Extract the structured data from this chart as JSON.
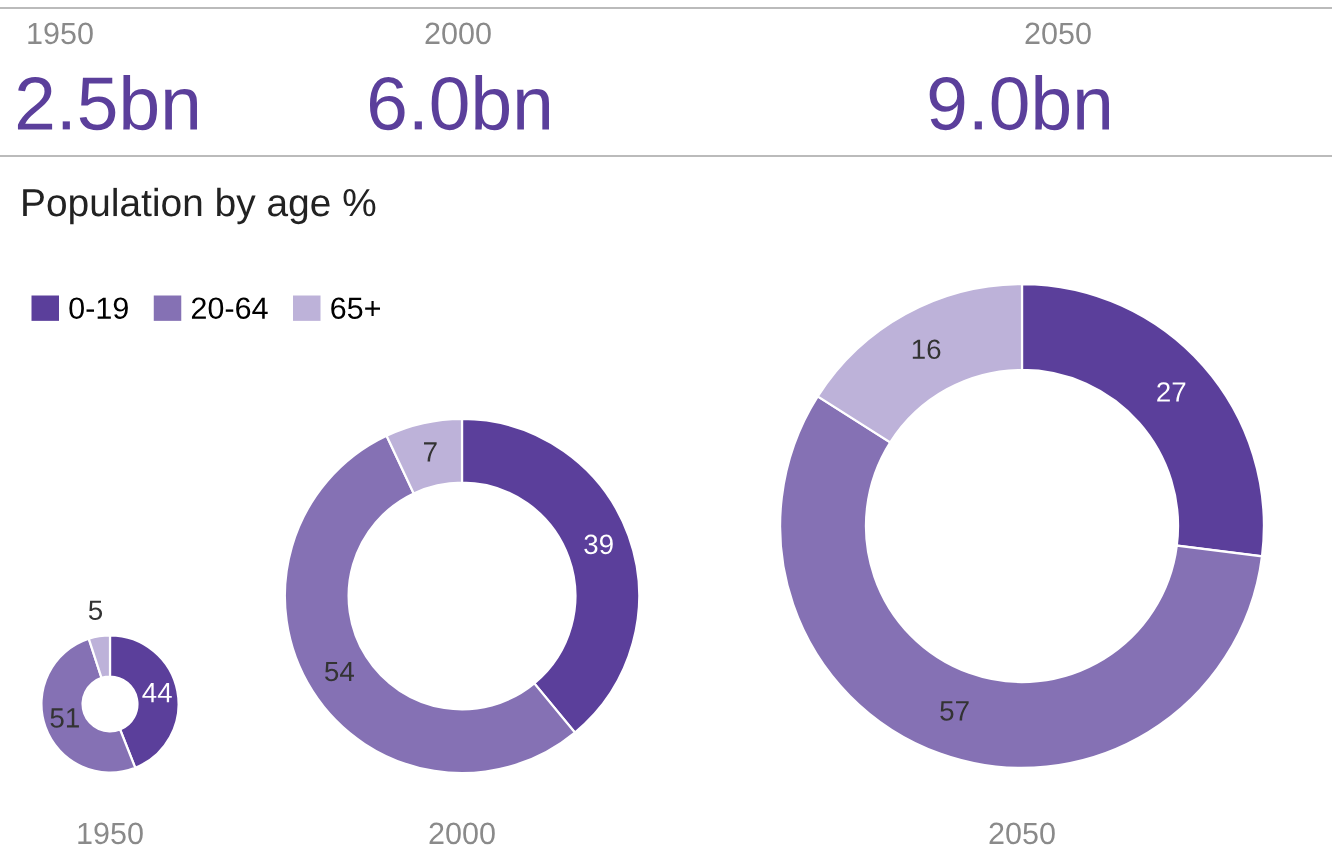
{
  "chart_data": [
    {
      "type": "other",
      "title": "Population by age %",
      "annotations": [
        "1950",
        "2.5bn",
        "2000",
        "6.0bn",
        "2050",
        "9.0bn"
      ]
    },
    {
      "type": "donut",
      "xlabel": "1950",
      "categories": [
        "0-19",
        "20-64",
        "65+"
      ],
      "values": [
        44,
        51,
        5
      ],
      "colors": [
        "#5b3f9b",
        "#8571b4",
        "#bdb2d9"
      ],
      "data_labels": true,
      "legend": "top"
    },
    {
      "type": "donut",
      "xlabel": "2000",
      "categories": [
        null,
        null,
        null
      ],
      "values": [
        39,
        54,
        7
      ],
      "colors": [
        "#5b3f9b",
        "#8571b4",
        "#bdb2d9"
      ],
      "data_labels": true
    },
    {
      "type": "donut",
      "xlabel": "2050",
      "categories": [
        null,
        null,
        null
      ],
      "values": [
        27,
        57,
        16
      ],
      "colors": [
        "#5b3f9b",
        "#8571b4",
        "#bdb2d9"
      ],
      "data_labels": true
    }
  ]
}
